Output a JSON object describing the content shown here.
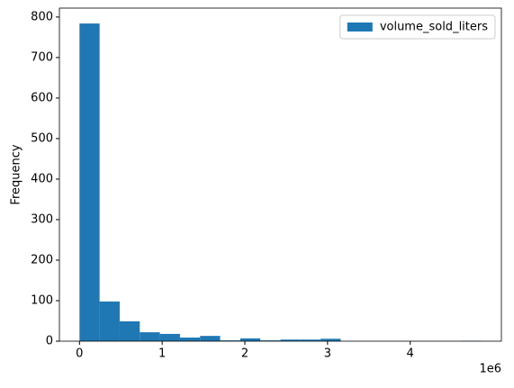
{
  "chart_data": {
    "type": "histogram",
    "y_label": "Frequency",
    "x_offset_label": "1e6",
    "bins": [
      0,
      0.243,
      0.486,
      0.729,
      0.972,
      1.215,
      1.458,
      1.701,
      1.944,
      2.187,
      2.43,
      2.673,
      2.916,
      3.159,
      3.402,
      3.645,
      3.888,
      4.131,
      4.374,
      4.617,
      4.86
    ],
    "series": [
      {
        "name": "volume_sold_liters",
        "color": "#1f77b4",
        "values": [
          784,
          98,
          49,
          22,
          18,
          9,
          13,
          2,
          7,
          2,
          4,
          4,
          6,
          0,
          0,
          0,
          0,
          0,
          0,
          1
        ]
      }
    ],
    "xlim": [
      -0.243,
      5.103
    ],
    "ylim": [
      0,
      822
    ],
    "xticks": [
      0,
      1,
      2,
      3,
      4
    ],
    "yticks": [
      0,
      100,
      200,
      300,
      400,
      500,
      600,
      700,
      800
    ],
    "legend": "upper right"
  }
}
